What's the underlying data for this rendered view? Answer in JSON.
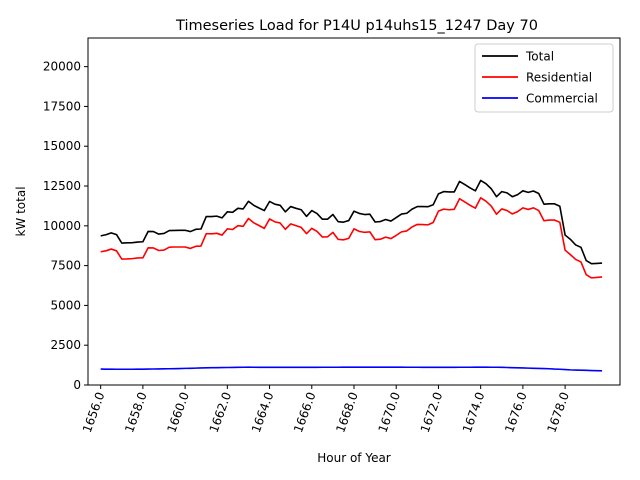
{
  "chart_data": {
    "type": "line",
    "title": "Timeseries Load for P14U p14uhs15_1247  Day 70",
    "xlabel": "Hour of Year",
    "ylabel": "kW total",
    "xlim": [
      1655.4,
      1680.6
    ],
    "ylim": [
      0,
      21800
    ],
    "xticks": [
      1656,
      1658,
      1660,
      1662,
      1664,
      1666,
      1668,
      1670,
      1672,
      1674,
      1676,
      1678
    ],
    "xtick_labels": [
      "1656.0",
      "1658.0",
      "1660.0",
      "1662.0",
      "1664.0",
      "1666.0",
      "1668.0",
      "1670.0",
      "1672.0",
      "1674.0",
      "1676.0",
      "1678.0"
    ],
    "yticks": [
      0,
      2500,
      5000,
      7500,
      10000,
      12500,
      15000,
      17500,
      20000
    ],
    "ytick_labels": [
      "0",
      "2500",
      "5000",
      "7500",
      "10000",
      "12500",
      "15000",
      "17500",
      "20000"
    ],
    "grid": false,
    "legend_position": "top-right",
    "x": [
      1656.0,
      1656.25,
      1656.5,
      1656.75,
      1657.0,
      1657.25,
      1657.5,
      1657.75,
      1658.0,
      1658.25,
      1658.5,
      1658.75,
      1659.0,
      1659.25,
      1659.5,
      1659.75,
      1660.0,
      1660.25,
      1660.5,
      1660.75,
      1661.0,
      1661.25,
      1661.5,
      1661.75,
      1662.0,
      1662.25,
      1662.5,
      1662.75,
      1663.0,
      1663.25,
      1663.5,
      1663.75,
      1664.0,
      1664.25,
      1664.5,
      1664.75,
      1665.0,
      1665.25,
      1665.5,
      1665.75,
      1666.0,
      1666.25,
      1666.5,
      1666.75,
      1667.0,
      1667.25,
      1667.5,
      1667.75,
      1668.0,
      1668.25,
      1668.5,
      1668.75,
      1669.0,
      1669.25,
      1669.5,
      1669.75,
      1670.0,
      1670.25,
      1670.5,
      1670.75,
      1671.0,
      1671.25,
      1671.5,
      1671.75,
      1672.0,
      1672.25,
      1672.5,
      1672.75,
      1673.0,
      1673.25,
      1673.5,
      1673.75,
      1674.0,
      1674.25,
      1674.5,
      1674.75,
      1675.0,
      1675.25,
      1675.5,
      1675.75,
      1676.0,
      1676.25,
      1676.5,
      1676.75,
      1677.0,
      1677.25,
      1677.5,
      1677.75,
      1678.0,
      1678.25,
      1678.5,
      1678.75,
      1679.0,
      1679.25,
      1679.5,
      1679.75
    ],
    "series": [
      {
        "name": "Total",
        "color": "#000000",
        "values": [
          9370,
          9440,
          9560,
          9450,
          8920,
          8930,
          8940,
          8980,
          9000,
          9650,
          9640,
          9480,
          9520,
          9700,
          9710,
          9720,
          9720,
          9640,
          9780,
          9800,
          10580,
          10580,
          10610,
          10500,
          10880,
          10850,
          11100,
          11060,
          11540,
          11290,
          11120,
          10960,
          11530,
          11360,
          11290,
          10880,
          11210,
          11100,
          11010,
          10590,
          10960,
          10770,
          10420,
          10420,
          10710,
          10260,
          10230,
          10330,
          10920,
          10780,
          10710,
          10730,
          10240,
          10270,
          10400,
          10300,
          10520,
          10740,
          10790,
          11050,
          11210,
          11210,
          11200,
          11320,
          12010,
          12150,
          12130,
          12130,
          12790,
          12590,
          12380,
          12200,
          12850,
          12650,
          12330,
          11830,
          12150,
          12070,
          11830,
          11960,
          12200,
          12100,
          12190,
          12030,
          11360,
          11380,
          11380,
          11230,
          9420,
          9150,
          8800,
          8650,
          7820,
          7620,
          7640,
          7660
        ]
      },
      {
        "name": "Residential",
        "color": "#ff0000",
        "values": [
          8370,
          8430,
          8540,
          8430,
          7910,
          7920,
          7940,
          7980,
          7990,
          8620,
          8610,
          8450,
          8480,
          8660,
          8670,
          8670,
          8670,
          8580,
          8710,
          8730,
          9510,
          9500,
          9530,
          9420,
          9810,
          9770,
          10010,
          9970,
          10460,
          10190,
          10020,
          9840,
          10430,
          10250,
          10180,
          9780,
          10120,
          10010,
          9900,
          9510,
          9840,
          9650,
          9300,
          9310,
          9590,
          9150,
          9120,
          9210,
          9810,
          9650,
          9590,
          9620,
          9130,
          9160,
          9290,
          9200,
          9400,
          9620,
          9680,
          9930,
          10090,
          10080,
          10060,
          10210,
          10920,
          11050,
          11010,
          11040,
          11700,
          11500,
          11290,
          11110,
          11760,
          11550,
          11240,
          10730,
          11060,
          10960,
          10750,
          10890,
          11130,
          11030,
          11130,
          10960,
          10320,
          10360,
          10360,
          10220,
          8470,
          8190,
          7890,
          7730,
          6930,
          6730,
          6760,
          6790
        ]
      },
      {
        "name": "Commercial",
        "color": "#0000ff",
        "values": [
          1000,
          995,
          995,
          990,
          990,
          990,
          990,
          995,
          995,
          1000,
          1005,
          1010,
          1015,
          1020,
          1025,
          1035,
          1045,
          1050,
          1060,
          1070,
          1080,
          1085,
          1090,
          1095,
          1100,
          1105,
          1110,
          1115,
          1120,
          1115,
          1110,
          1110,
          1110,
          1110,
          1110,
          1110,
          1110,
          1110,
          1110,
          1110,
          1110,
          1110,
          1115,
          1115,
          1115,
          1115,
          1120,
          1120,
          1120,
          1120,
          1120,
          1120,
          1120,
          1120,
          1120,
          1120,
          1120,
          1120,
          1115,
          1115,
          1115,
          1110,
          1110,
          1110,
          1110,
          1110,
          1110,
          1110,
          1115,
          1115,
          1115,
          1120,
          1120,
          1120,
          1115,
          1115,
          1110,
          1100,
          1090,
          1080,
          1070,
          1060,
          1050,
          1040,
          1030,
          1020,
          1000,
          990,
          970,
          950,
          940,
          930,
          920,
          910,
          900,
          890
        ]
      }
    ]
  }
}
